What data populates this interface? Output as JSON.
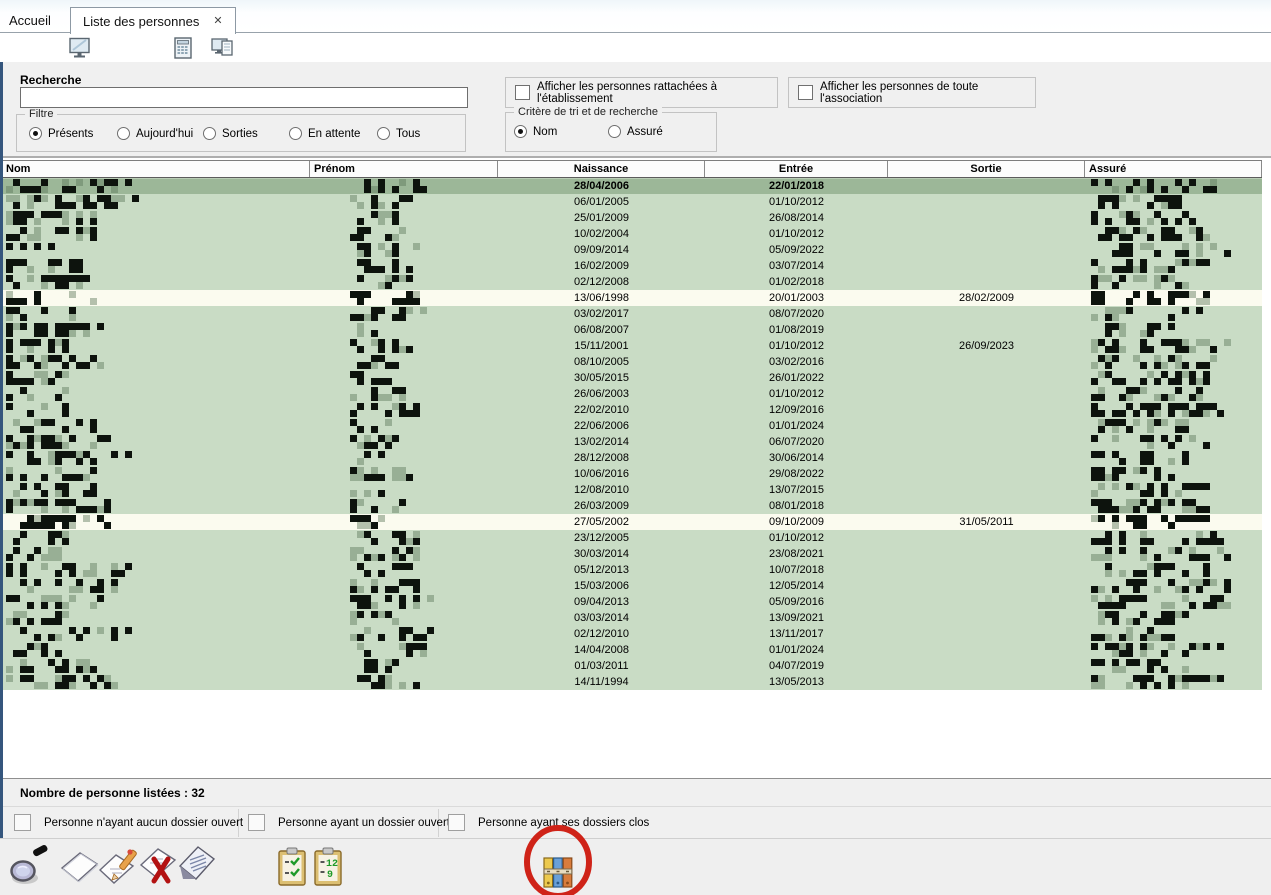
{
  "tabs": {
    "home": "Accueil",
    "active": "Liste des personnes",
    "close_glyph": "✕"
  },
  "top_toolbar": {
    "icons": [
      "monitor-icon",
      "calculator-icon",
      "monitor-document-icon"
    ]
  },
  "search": {
    "label": "Recherche",
    "value": "",
    "placeholder": ""
  },
  "filter": {
    "legend": "Filtre",
    "options": [
      {
        "label": "Présents",
        "selected": true
      },
      {
        "label": "Aujourd'hui",
        "selected": false
      },
      {
        "label": "Sorties",
        "selected": false
      },
      {
        "label": "En attente",
        "selected": false
      },
      {
        "label": "Tous",
        "selected": false
      }
    ]
  },
  "display_options": [
    {
      "label": "Afficher les personnes rattachées à l'établissement",
      "checked": false
    },
    {
      "label": "Afficher les personnes de toute l'association",
      "checked": false
    }
  ],
  "sort": {
    "legend": "Critère de tri et de recherche",
    "options": [
      {
        "label": "Nom",
        "selected": true
      },
      {
        "label": "Assuré",
        "selected": false
      }
    ]
  },
  "table": {
    "columns": [
      "Nom",
      "Prénom",
      "Naissance",
      "Entrée",
      "Sortie",
      "Assuré"
    ],
    "rows": [
      {
        "naissance": "28/04/2006",
        "entree": "22/01/2018",
        "sortie": "",
        "selected": true,
        "white": false
      },
      {
        "naissance": "06/01/2005",
        "entree": "01/10/2012",
        "sortie": "",
        "selected": false,
        "white": false
      },
      {
        "naissance": "25/01/2009",
        "entree": "26/08/2014",
        "sortie": "",
        "selected": false,
        "white": false
      },
      {
        "naissance": "10/02/2004",
        "entree": "01/10/2012",
        "sortie": "",
        "selected": false,
        "white": false
      },
      {
        "naissance": "09/09/2014",
        "entree": "05/09/2022",
        "sortie": "",
        "selected": false,
        "white": false
      },
      {
        "naissance": "16/02/2009",
        "entree": "03/07/2014",
        "sortie": "",
        "selected": false,
        "white": false
      },
      {
        "naissance": "02/12/2008",
        "entree": "01/02/2018",
        "sortie": "",
        "selected": false,
        "white": false
      },
      {
        "naissance": "13/06/1998",
        "entree": "20/01/2003",
        "sortie": "28/02/2009",
        "selected": false,
        "white": true
      },
      {
        "naissance": "03/02/2017",
        "entree": "08/07/2020",
        "sortie": "",
        "selected": false,
        "white": false
      },
      {
        "naissance": "06/08/2007",
        "entree": "01/08/2019",
        "sortie": "",
        "selected": false,
        "white": false
      },
      {
        "naissance": "15/11/2001",
        "entree": "01/10/2012",
        "sortie": "26/09/2023",
        "selected": false,
        "white": false
      },
      {
        "naissance": "08/10/2005",
        "entree": "03/02/2016",
        "sortie": "",
        "selected": false,
        "white": false
      },
      {
        "naissance": "30/05/2015",
        "entree": "26/01/2022",
        "sortie": "",
        "selected": false,
        "white": false
      },
      {
        "naissance": "26/06/2003",
        "entree": "01/10/2012",
        "sortie": "",
        "selected": false,
        "white": false
      },
      {
        "naissance": "22/02/2010",
        "entree": "12/09/2016",
        "sortie": "",
        "selected": false,
        "white": false
      },
      {
        "naissance": "22/06/2006",
        "entree": "01/01/2024",
        "sortie": "",
        "selected": false,
        "white": false
      },
      {
        "naissance": "13/02/2014",
        "entree": "06/07/2020",
        "sortie": "",
        "selected": false,
        "white": false
      },
      {
        "naissance": "28/12/2008",
        "entree": "30/06/2014",
        "sortie": "",
        "selected": false,
        "white": false
      },
      {
        "naissance": "10/06/2016",
        "entree": "29/08/2022",
        "sortie": "",
        "selected": false,
        "white": false
      },
      {
        "naissance": "12/08/2010",
        "entree": "13/07/2015",
        "sortie": "",
        "selected": false,
        "white": false
      },
      {
        "naissance": "26/03/2009",
        "entree": "08/01/2018",
        "sortie": "",
        "selected": false,
        "white": false
      },
      {
        "naissance": "27/05/2002",
        "entree": "09/10/2009",
        "sortie": "31/05/2011",
        "selected": false,
        "white": true
      },
      {
        "naissance": "23/12/2005",
        "entree": "01/10/2012",
        "sortie": "",
        "selected": false,
        "white": false
      },
      {
        "naissance": "30/03/2014",
        "entree": "23/08/2021",
        "sortie": "",
        "selected": false,
        "white": false
      },
      {
        "naissance": "05/12/2013",
        "entree": "10/07/2018",
        "sortie": "",
        "selected": false,
        "white": false
      },
      {
        "naissance": "15/03/2006",
        "entree": "12/05/2014",
        "sortie": "",
        "selected": false,
        "white": false
      },
      {
        "naissance": "09/04/2013",
        "entree": "05/09/2016",
        "sortie": "",
        "selected": false,
        "white": false
      },
      {
        "naissance": "03/03/2014",
        "entree": "13/09/2021",
        "sortie": "",
        "selected": false,
        "white": false
      },
      {
        "naissance": "02/12/2010",
        "entree": "13/11/2017",
        "sortie": "",
        "selected": false,
        "white": false
      },
      {
        "naissance": "14/04/2008",
        "entree": "01/01/2024",
        "sortie": "",
        "selected": false,
        "white": false
      },
      {
        "naissance": "01/03/2011",
        "entree": "04/07/2019",
        "sortie": "",
        "selected": false,
        "white": false
      },
      {
        "naissance": "14/11/1994",
        "entree": "13/05/2013",
        "sortie": "",
        "selected": false,
        "white": false
      }
    ],
    "redacted_note": "Nom, Prénom and Assuré values are pixelated/redacted in the source image"
  },
  "status": {
    "text": "Nombre de personne listées : 32",
    "count": 32
  },
  "legend": {
    "items": [
      {
        "label": "Personne n'ayant aucun dossier ouvert"
      },
      {
        "label": "Personne ayant un dossier ouvert"
      },
      {
        "label": "Personne ayant ses dossiers clos"
      }
    ]
  },
  "bottom_toolbar": {
    "icons": [
      "search-icon",
      "new-document-icon",
      "edit-document-icon",
      "delete-document-icon",
      "view-document-icon",
      "clipboard-check-icon",
      "clipboard-dates-icon",
      "archive-icon"
    ],
    "annotation": {
      "type": "red-circle",
      "target": "archive-icon"
    }
  },
  "colors": {
    "row_green": "#c9dcc5",
    "row_white": "#fbfbef",
    "row_selected": "#9cb798",
    "left_border": "#35567d",
    "annotation_red": "#cf2318",
    "clipboard_tan": "#dcbf72",
    "check_green": "#1f9a28"
  }
}
